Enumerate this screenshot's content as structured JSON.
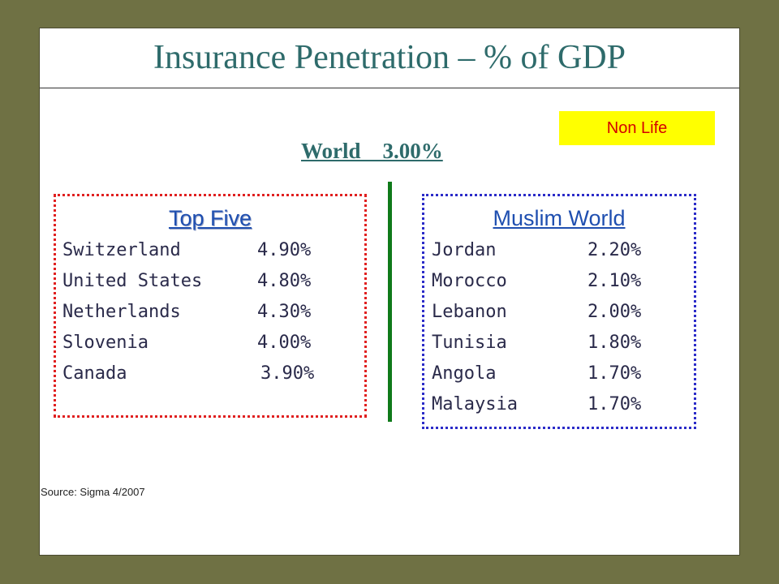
{
  "title": "Insurance Penetration – % of GDP",
  "badge": "Non Life",
  "world": "World    3.00%",
  "top_five": {
    "heading": "Top Five",
    "rows": [
      {
        "country": "Switzerland",
        "value": "4.90%"
      },
      {
        "country": "United States",
        "value": "4.80%"
      },
      {
        "country": "Netherlands",
        "value": "4.30%"
      },
      {
        "country": "Slovenia",
        "value": "4.00%"
      },
      {
        "country": "Canada",
        "value": "3.90%"
      }
    ]
  },
  "muslim_world": {
    "heading": "Muslim World",
    "rows": [
      {
        "country": "Jordan",
        "value": "2.20%"
      },
      {
        "country": "Morocco",
        "value": "2.10%"
      },
      {
        "country": "Lebanon",
        "value": "2.00%"
      },
      {
        "country": "Tunisia",
        "value": "1.80%"
      },
      {
        "country": "Angola",
        "value": "1.70%"
      },
      {
        "country": "Malaysia",
        "value": "1.70%"
      }
    ]
  },
  "source": "Source: Sigma 4/2007",
  "colors": {
    "background": "#6f7144",
    "title": "#2e6b6b",
    "badge_bg": "#ffff00",
    "badge_text": "#d40000",
    "divider": "#0f7a1a"
  }
}
